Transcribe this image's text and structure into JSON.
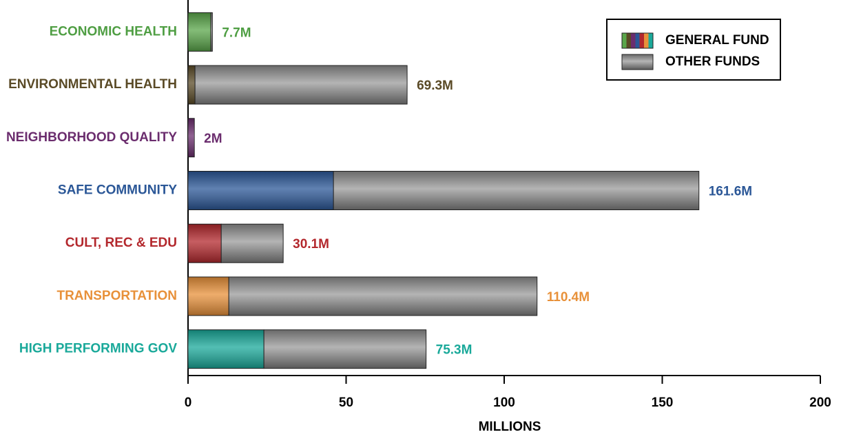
{
  "chart_data": {
    "type": "stacked-barh",
    "categories": [
      "ECONOMIC HEALTH",
      "ENVIRONMENTAL HEALTH",
      "NEIGHBORHOOD QUALITY",
      "SAFE COMMUNITY",
      "CULT, REC & EDU",
      "TRANSPORTATION",
      "HIGH PERFORMING GOV"
    ],
    "category_colors": [
      "#4f9e43",
      "#5a4a26",
      "#6b2d6e",
      "#2b5797",
      "#b3282d",
      "#e8913a",
      "#1aa99a"
    ],
    "series": [
      {
        "name": "GENERAL FUND",
        "colors": [
          "#5aa64a",
          "#5a4a26",
          "#6b2d6e",
          "#2b5797",
          "#b3282d",
          "#e8913a",
          "#1aa99a"
        ],
        "values": [
          7.2,
          2.2,
          2,
          46,
          10.5,
          12.9,
          24
        ]
      },
      {
        "name": "OTHER FUNDS",
        "color": "#8a8a8a",
        "values": [
          0.5,
          67.1,
          0,
          115.6,
          19.6,
          97.5,
          51.3
        ]
      }
    ],
    "totals": {
      "values": [
        7.7,
        69.3,
        2,
        161.6,
        30.1,
        110.4,
        75.3
      ],
      "value_labels": [
        "7.7M",
        "69.3M",
        "2M",
        "161.6M",
        "30.1M",
        "110.4M",
        "75.3M"
      ]
    },
    "xlabel": "MILLIONS",
    "xlim": [
      0,
      200
    ],
    "xticks": [
      0,
      50,
      100,
      150,
      200
    ],
    "legend": "upper right"
  }
}
